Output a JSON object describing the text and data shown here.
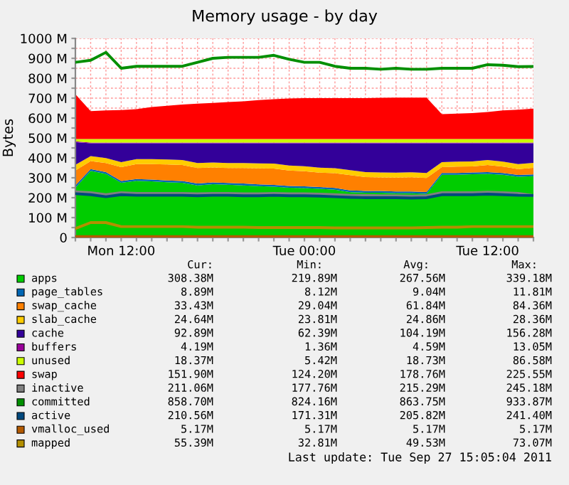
{
  "chart_data": {
    "type": "area",
    "title": "Memory usage - by day",
    "ylabel": "Bytes",
    "stacked": true,
    "categories": [
      null,
      null,
      null,
      "Mon 12:00",
      null,
      null,
      null,
      null,
      null,
      null,
      null,
      null,
      null,
      null,
      null,
      "Tue 00:00",
      null,
      null,
      null,
      null,
      null,
      null,
      null,
      null,
      null,
      null,
      null,
      "Tue 12:00",
      null,
      null,
      null
    ],
    "ylim": [
      0,
      1000
    ],
    "yticks": [
      0,
      {
        "value": 50,
        "label": null
      },
      {
        "value": 100,
        "label": "100 M"
      },
      {
        "value": 150,
        "label": null
      },
      {
        "value": 200,
        "label": "200 M"
      },
      {
        "value": 250,
        "label": null
      },
      {
        "value": 300,
        "label": "300 M"
      },
      {
        "value": 350,
        "label": null
      },
      {
        "value": 400,
        "label": "400 M"
      },
      {
        "value": 450,
        "label": null
      },
      {
        "value": 500,
        "label": "500 M"
      },
      {
        "value": 550,
        "label": null
      },
      {
        "value": 600,
        "label": "600 M"
      },
      {
        "value": 650,
        "label": null
      },
      {
        "value": 700,
        "label": "700 M"
      },
      {
        "value": 750,
        "label": null
      },
      {
        "value": 800,
        "label": "800 M"
      },
      {
        "value": 850,
        "label": null
      },
      {
        "value": 900,
        "label": "900 M"
      },
      {
        "value": 950,
        "label": null
      },
      {
        "value": 1000,
        "label": "1000 M"
      }
    ],
    "grid": true,
    "legend": "bottom",
    "series": [
      {
        "name": "apps",
        "color": "#00cc00",
        "values": [
          250,
          335,
          320,
          275,
          285,
          282,
          278,
          275,
          262,
          268,
          265,
          262,
          258,
          255,
          250,
          248,
          245,
          240,
          228,
          225,
          225,
          222,
          222,
          220,
          315,
          315,
          318,
          320,
          315,
          305,
          308
        ]
      },
      {
        "name": "page_tables",
        "color": "#0066b3",
        "values": [
          12,
          9,
          9,
          9,
          9,
          9,
          9,
          9,
          9,
          9,
          9,
          9,
          9,
          9,
          9,
          9,
          9,
          9,
          9,
          9,
          9,
          9,
          9,
          9,
          9,
          9,
          9,
          9,
          9,
          9,
          9
        ]
      },
      {
        "name": "swap_cache",
        "color": "#ff8000",
        "values": [
          75,
          40,
          45,
          70,
          75,
          78,
          80,
          80,
          78,
          75,
          75,
          78,
          80,
          82,
          78,
          76,
          72,
          74,
          76,
          70,
          68,
          70,
          72,
          70,
          30,
          32,
          30,
          35,
          32,
          30,
          33
        ]
      },
      {
        "name": "slab_cache",
        "color": "#ffcc00",
        "values": [
          28,
          25,
          25,
          25,
          25,
          25,
          25,
          25,
          25,
          25,
          25,
          25,
          25,
          25,
          25,
          25,
          25,
          25,
          25,
          25,
          25,
          25,
          25,
          25,
          25,
          25,
          25,
          25,
          25,
          25,
          25
        ]
      },
      {
        "name": "cache",
        "color": "#330099",
        "values": [
          114,
          64,
          74,
          94,
          79,
          79,
          81,
          84,
          99,
          96,
          99,
          99,
          101,
          102,
          111,
          115,
          122,
          125,
          135,
          144,
          146,
          147,
          145,
          149,
          94,
          92,
          91,
          84,
          92,
          104,
          98
        ]
      },
      {
        "name": "buffers",
        "color": "#990099",
        "values": [
          4,
          4,
          4,
          4,
          4,
          4,
          4,
          4,
          4,
          4,
          4,
          4,
          4,
          4,
          4,
          4,
          4,
          4,
          4,
          4,
          4,
          4,
          4,
          4,
          4,
          4,
          4,
          4,
          4,
          4,
          4
        ]
      },
      {
        "name": "unused",
        "color": "#ccff00",
        "values": [
          12,
          18,
          18,
          18,
          18,
          18,
          18,
          18,
          18,
          18,
          18,
          18,
          18,
          18,
          18,
          18,
          18,
          18,
          18,
          18,
          18,
          18,
          18,
          18,
          18,
          18,
          18,
          18,
          18,
          18,
          18
        ]
      },
      {
        "name": "swap",
        "color": "#ff0000",
        "values": [
          225,
          140,
          143,
          145,
          150,
          160,
          167,
          173,
          177,
          181,
          185,
          189,
          195,
          200,
          203,
          205,
          205,
          205,
          205,
          205,
          207,
          208,
          208,
          208,
          125,
          127,
          130,
          135,
          143,
          147,
          152
        ]
      },
      {
        "name": "inactive",
        "color": "#808080",
        "type": "line",
        "values": [
          230,
          225,
          215,
          225,
          222,
          222,
          222,
          222,
          220,
          222,
          222,
          220,
          220,
          222,
          220,
          220,
          218,
          215,
          212,
          212,
          210,
          210,
          208,
          210,
          225,
          225,
          225,
          228,
          225,
          222,
          211
        ]
      },
      {
        "name": "committed",
        "color": "#008f00",
        "type": "line",
        "values": [
          880,
          890,
          930,
          850,
          860,
          860,
          860,
          860,
          880,
          900,
          905,
          905,
          905,
          915,
          895,
          880,
          880,
          860,
          850,
          850,
          845,
          850,
          845,
          845,
          850,
          850,
          850,
          868,
          865,
          858,
          859
        ]
      },
      {
        "name": "active",
        "color": "#00487d",
        "type": "line",
        "values": [
          220,
          215,
          205,
          215,
          212,
          212,
          212,
          212,
          210,
          212,
          212,
          210,
          210,
          212,
          210,
          210,
          208,
          205,
          202,
          200,
          200,
          200,
          198,
          200,
          215,
          215,
          215,
          218,
          215,
          212,
          211
        ]
      },
      {
        "name": "vmalloc_used",
        "color": "#b35a00",
        "type": "line",
        "values": [
          5,
          5,
          5,
          5,
          5,
          5,
          5,
          5,
          5,
          5,
          5,
          5,
          5,
          5,
          5,
          5,
          5,
          5,
          5,
          5,
          5,
          5,
          5,
          5,
          5,
          5,
          5,
          5,
          5,
          5,
          5
        ]
      },
      {
        "name": "mapped",
        "color": "#b38f00",
        "type": "line",
        "values": [
          45,
          75,
          75,
          55,
          55,
          55,
          55,
          55,
          52,
          52,
          52,
          52,
          50,
          50,
          50,
          50,
          50,
          48,
          48,
          48,
          48,
          48,
          48,
          50,
          52,
          52,
          55,
          55,
          55,
          55,
          55
        ]
      }
    ],
    "annotations": [
      "Cur:",
      "Min:",
      "Avg:",
      "Max:",
      "308.38M",
      "219.89M",
      "267.56M",
      "339.18M",
      "8.89M",
      "8.12M",
      "9.04M",
      "11.81M",
      "33.43M",
      "29.04M",
      "61.84M",
      "84.36M",
      "24.64M",
      "23.81M",
      "24.86M",
      "28.36M",
      "92.89M",
      "62.39M",
      "104.19M",
      "156.28M",
      "4.19M",
      "1.36M",
      "4.59M",
      "13.05M",
      "18.37M",
      "5.42M",
      "18.73M",
      "86.58M",
      "151.90M",
      "124.20M",
      "178.76M",
      "225.55M",
      "211.06M",
      "177.76M",
      "215.29M",
      "245.18M",
      "858.70M",
      "824.16M",
      "863.75M",
      "933.87M",
      "210.56M",
      "171.31M",
      "205.82M",
      "241.40M",
      "5.17M",
      "5.17M",
      "5.17M",
      "5.17M",
      "55.39M",
      "32.81M",
      "49.53M",
      "73.07M",
      "Last update: Tue Sep 27 15:05:04 2011"
    ]
  }
}
